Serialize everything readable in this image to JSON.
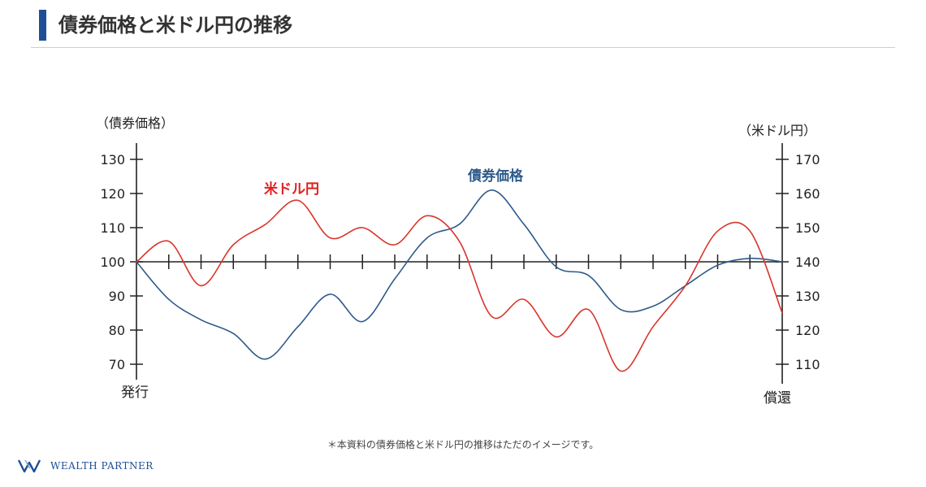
{
  "header": {
    "title": "債券価格と米ドル円の推移"
  },
  "chart_data": {
    "type": "line",
    "left_axis": {
      "label": "（債券価格）",
      "ticks": [
        70,
        80,
        90,
        100,
        110,
        120,
        130
      ],
      "range": [
        67,
        136
      ]
    },
    "right_axis": {
      "label": "（米ドル円）",
      "ticks": [
        110,
        120,
        130,
        140,
        150,
        160,
        170
      ],
      "range": [
        105,
        176
      ]
    },
    "x_start_label": "発行",
    "x_end_label": "償還",
    "series": [
      {
        "name": "債券価格",
        "axis": "left",
        "color": "#2e5a8a",
        "label_color": "#2e5a8a",
        "values": [
          100,
          89,
          83,
          79,
          71.5,
          81,
          90.5,
          82.5,
          95,
          107,
          111,
          121,
          111,
          98.5,
          96,
          86,
          87,
          93,
          99,
          101,
          100
        ]
      },
      {
        "name": "米ドル円",
        "axis": "right",
        "color": "#d9342b",
        "label_color": "#e02020",
        "values": [
          140,
          146,
          133,
          145,
          151,
          158,
          147,
          150,
          145,
          153.5,
          146,
          124,
          129,
          118,
          126,
          108,
          121,
          133,
          149,
          149,
          125
        ]
      }
    ]
  },
  "footnote": "＊本資料の債券価格と米ドル円の推移はただのイメージです。",
  "brand": {
    "name": "WEALTH PARTNER",
    "color": "#1f4e96"
  }
}
